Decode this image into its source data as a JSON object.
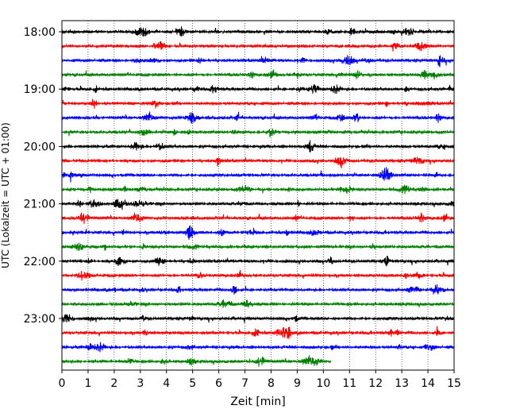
{
  "chart_data": {
    "type": "line",
    "xlabel": "Zeit  [min]",
    "ylabel": "UTC (Lokalzeit = UTC + 01:00)",
    "xlim": [
      0,
      15
    ],
    "x_ticks": [
      "0",
      "1",
      "2",
      "3",
      "4",
      "5",
      "6",
      "7",
      "8",
      "9",
      "10",
      "11",
      "12",
      "13",
      "14",
      "15"
    ],
    "y_tick_labels": [
      "18:00",
      "19:00",
      "20:00",
      "21:00",
      "22:00",
      "23:00"
    ],
    "y_tick_times": [
      "18:00",
      "19:00",
      "20:00",
      "21:00",
      "22:00",
      "23:00"
    ],
    "grid": "vertical dotted",
    "trace_minutes_per_line": 15,
    "traces": [
      {
        "start": "18:00",
        "end_min": 15,
        "color": "#000000"
      },
      {
        "start": "18:15",
        "end_min": 15,
        "color": "#ff0000"
      },
      {
        "start": "18:30",
        "end_min": 15,
        "color": "#0000ff"
      },
      {
        "start": "18:45",
        "end_min": 15,
        "color": "#008000"
      },
      {
        "start": "19:00",
        "end_min": 15,
        "color": "#000000"
      },
      {
        "start": "19:15",
        "end_min": 15,
        "color": "#ff0000"
      },
      {
        "start": "19:30",
        "end_min": 15,
        "color": "#0000ff"
      },
      {
        "start": "19:45",
        "end_min": 15,
        "color": "#008000"
      },
      {
        "start": "20:00",
        "end_min": 15,
        "color": "#000000"
      },
      {
        "start": "20:15",
        "end_min": 15,
        "color": "#ff0000"
      },
      {
        "start": "20:30",
        "end_min": 15,
        "color": "#0000ff"
      },
      {
        "start": "20:45",
        "end_min": 15,
        "color": "#008000"
      },
      {
        "start": "21:00",
        "end_min": 15,
        "color": "#000000"
      },
      {
        "start": "21:15",
        "end_min": 15,
        "color": "#ff0000"
      },
      {
        "start": "21:30",
        "end_min": 15,
        "color": "#0000ff"
      },
      {
        "start": "21:45",
        "end_min": 15,
        "color": "#008000"
      },
      {
        "start": "22:00",
        "end_min": 15,
        "color": "#000000"
      },
      {
        "start": "22:15",
        "end_min": 15,
        "color": "#ff0000"
      },
      {
        "start": "22:30",
        "end_min": 15,
        "color": "#0000ff"
      },
      {
        "start": "22:45",
        "end_min": 15,
        "color": "#008000"
      },
      {
        "start": "23:00",
        "end_min": 15,
        "color": "#000000"
      },
      {
        "start": "23:15",
        "end_min": 15,
        "color": "#ff0000"
      },
      {
        "start": "23:30",
        "end_min": 15,
        "color": "#0000ff"
      },
      {
        "start": "23:45",
        "end_min": 10.3,
        "color": "#008000"
      }
    ],
    "colors": [
      "#000000",
      "#ff0000",
      "#0000ff",
      "#008000"
    ]
  }
}
